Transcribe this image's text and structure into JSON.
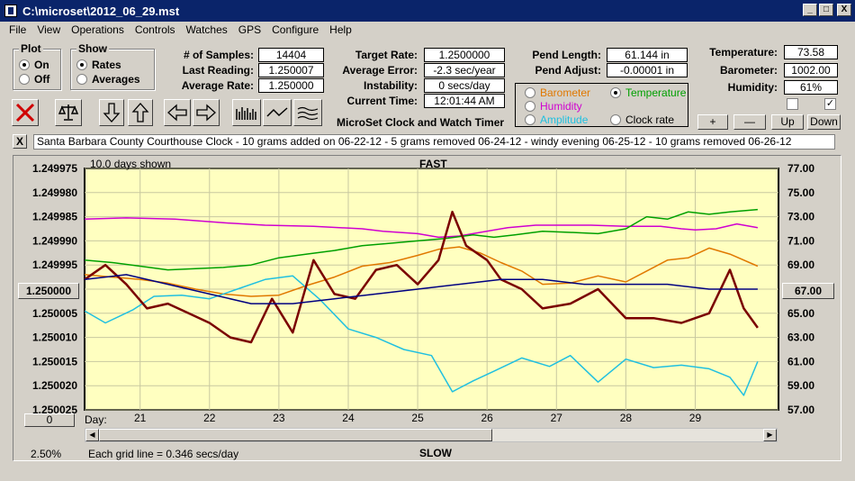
{
  "window": {
    "title": "C:\\microset\\2012_06_29.mst",
    "min": "_",
    "max": "□",
    "close": "X"
  },
  "menu": [
    "File",
    "View",
    "Operations",
    "Controls",
    "Watches",
    "GPS",
    "Configure",
    "Help"
  ],
  "plot_group": {
    "title": "Plot",
    "on": "On",
    "off": "Off",
    "selected": "On"
  },
  "show_group": {
    "title": "Show",
    "rates": "Rates",
    "averages": "Averages",
    "selected": "Rates"
  },
  "stats": {
    "samples_label": "# of Samples:",
    "samples": "14404",
    "last_label": "Last Reading:",
    "last": "1.250007",
    "avg_rate_label": "Average Rate:",
    "avg_rate": "1.250000",
    "target_label": "Target Rate:",
    "target": "1.2500000",
    "avg_err_label": "Average Error:",
    "avg_err": "-2.3 sec/year",
    "instab_label": "Instability:",
    "instab": "0 secs/day",
    "time_label": "Current Time:",
    "time": "12:01:44 AM",
    "pend_len_label": "Pend Length:",
    "pend_len": "61.144 in",
    "pend_adj_label": "Pend Adjust:",
    "pend_adj": "-0.00001 in",
    "temp_label": "Temperature:",
    "temp": "73.58",
    "baro_label": "Barometer:",
    "baro": "1002.00",
    "hum_label": "Humidity:",
    "hum": "61%"
  },
  "app_name": "MicroSet Clock and Watch Timer",
  "sensor_group": {
    "barometer": "Barometer",
    "temperature": "Temperature",
    "humidity": "Humidity",
    "amplitude": "Amplitude",
    "clock_rate": "Clock rate",
    "selected": "Temperature",
    "colors": {
      "barometer": "#e07800",
      "temperature": "#00a000",
      "humidity": "#d000d0",
      "amplitude": "#20c0e0",
      "clock_rate": "#000000"
    }
  },
  "right_buttons": {
    "plus": "+",
    "minus": "—",
    "up": "Up",
    "down": "Down"
  },
  "notes_close": "X",
  "notes": "Santa Barbara County Courthouse Clock - 10 grams added on 06-22-12 - 5 grams removed 06-24-12 - windy evening 06-25-12 - 10 grams removed 06-26-12",
  "plot": {
    "days_shown": "10.0 days shown",
    "top": "FAST",
    "bottom": "SLOW",
    "center_left": "1.250000",
    "center_right": "67.00",
    "left_scroll": "0",
    "zoom": "2.50%",
    "grid_note": "Each grid line = 0.346 secs/day",
    "day_label": "Day:"
  },
  "chart_data": {
    "type": "line",
    "left_axis": {
      "ticks": [
        "1.249975",
        "1.249980",
        "1.249985",
        "1.249990",
        "1.249995",
        "1.250000",
        "1.250005",
        "1.250010",
        "1.250015",
        "1.250020",
        "1.250025"
      ],
      "range": [
        1.250025,
        1.249975
      ],
      "reversed": true
    },
    "right_axis": {
      "ticks": [
        "77.00",
        "75.00",
        "73.00",
        "71.00",
        "69.00",
        "67.00",
        "65.00",
        "63.00",
        "61.00",
        "59.00",
        "57.00"
      ],
      "range": [
        57,
        77
      ]
    },
    "x_ticks": [
      "21",
      "22",
      "23",
      "24",
      "25",
      "26",
      "27",
      "28",
      "29"
    ],
    "xlim": [
      20.2,
      30.2
    ],
    "grid": true,
    "series": [
      {
        "name": "Humidity",
        "color": "#d000d0",
        "width": 1.5,
        "axis": "right",
        "x": [
          20.2,
          20.8,
          21.5,
          22.2,
          22.8,
          23.5,
          24.2,
          24.5,
          25,
          25.3,
          25.6,
          25.9,
          26.3,
          26.7,
          27,
          27.5,
          28,
          28.5,
          28.8,
          29,
          29.3,
          29.6,
          29.9
        ],
        "y": [
          72.8,
          72.9,
          72.8,
          72.5,
          72.3,
          72.2,
          72.0,
          71.8,
          71.6,
          71.3,
          71.4,
          71.7,
          72.1,
          72.3,
          72.3,
          72.3,
          72.2,
          72.2,
          72.0,
          71.9,
          72.0,
          72.4,
          72.1
        ]
      },
      {
        "name": "Temperature",
        "color": "#00a000",
        "width": 1.5,
        "axis": "right",
        "x": [
          20.2,
          20.6,
          21,
          21.4,
          21.8,
          22.2,
          22.6,
          23,
          23.4,
          23.8,
          24.2,
          24.6,
          25,
          25.4,
          25.8,
          26.1,
          26.4,
          26.8,
          27.2,
          27.6,
          28,
          28.3,
          28.6,
          28.9,
          29.2,
          29.5,
          29.9
        ],
        "y": [
          69.4,
          69.2,
          68.9,
          68.6,
          68.7,
          68.8,
          69.0,
          69.6,
          69.9,
          70.2,
          70.6,
          70.8,
          71.0,
          71.2,
          71.5,
          71.3,
          71.5,
          71.8,
          71.7,
          71.6,
          72.0,
          73.0,
          72.8,
          73.4,
          73.2,
          73.4,
          73.6
        ]
      },
      {
        "name": "Barometer",
        "color": "#e07800",
        "width": 1.5,
        "axis": "right",
        "x": [
          20.2,
          20.6,
          21,
          21.4,
          21.8,
          22.2,
          22.6,
          23,
          23.4,
          23.8,
          24.2,
          24.6,
          25,
          25.3,
          25.6,
          25.9,
          26.2,
          26.5,
          26.8,
          27.2,
          27.6,
          28,
          28.3,
          28.6,
          28.9,
          29.2,
          29.5,
          29.9
        ],
        "y": [
          68.2,
          68.0,
          67.8,
          67.5,
          67.0,
          66.6,
          66.4,
          66.5,
          67.3,
          68.0,
          68.9,
          69.2,
          69.8,
          70.3,
          70.5,
          70.0,
          69.2,
          68.5,
          67.4,
          67.5,
          68.1,
          67.6,
          68.5,
          69.4,
          69.6,
          70.4,
          69.9,
          68.9
        ]
      },
      {
        "name": "Amplitude",
        "color": "#20c0e0",
        "width": 1.5,
        "axis": "right",
        "x": [
          20.2,
          20.5,
          20.9,
          21.2,
          21.6,
          22,
          22.4,
          22.8,
          23.2,
          23.6,
          24,
          24.4,
          24.8,
          25.2,
          25.5,
          25.8,
          26.1,
          26.5,
          26.9,
          27.2,
          27.6,
          28,
          28.4,
          28.8,
          29.2,
          29.5,
          29.7,
          29.9
        ],
        "y": [
          65.2,
          64.2,
          65.3,
          66.4,
          66.5,
          66.2,
          67.0,
          67.8,
          68.1,
          66.1,
          63.7,
          63.0,
          62.0,
          61.5,
          58.5,
          59.4,
          60.2,
          61.3,
          60.6,
          61.5,
          59.3,
          61.2,
          60.5,
          60.7,
          60.4,
          59.7,
          58.2,
          61.0
        ]
      },
      {
        "name": "Clock rate",
        "color": "#7a0000",
        "width": 2.5,
        "axis": "left",
        "x": [
          20.2,
          20.5,
          20.8,
          21.1,
          21.4,
          21.7,
          22,
          22.3,
          22.6,
          22.9,
          23.2,
          23.5,
          23.8,
          24.1,
          24.4,
          24.7,
          25,
          25.3,
          25.5,
          25.7,
          26,
          26.2,
          26.5,
          26.8,
          27.2,
          27.6,
          28,
          28.4,
          28.8,
          29.2,
          29.5,
          29.7,
          29.9
        ],
        "y": [
          1.249998,
          1.249995,
          1.249999,
          1.250004,
          1.250003,
          1.250005,
          1.250007,
          1.25001,
          1.250011,
          1.250002,
          1.250009,
          1.249994,
          1.250001,
          1.250002,
          1.249996,
          1.249995,
          1.249999,
          1.249994,
          1.249984,
          1.249991,
          1.249994,
          1.249998,
          1.25,
          1.250004,
          1.250003,
          1.25,
          1.250006,
          1.250006,
          1.250007,
          1.250005,
          1.249996,
          1.250004,
          1.250008
        ]
      },
      {
        "name": "Average rate",
        "color": "#000080",
        "width": 1.5,
        "axis": "left",
        "x": [
          20.2,
          20.8,
          21.4,
          22,
          22.6,
          23.2,
          23.8,
          24.4,
          25,
          25.6,
          26.2,
          26.8,
          27.4,
          28,
          28.6,
          29.2,
          29.9
        ],
        "y": [
          1.249998,
          1.249997,
          1.249999,
          1.250001,
          1.250003,
          1.250003,
          1.250002,
          1.250001,
          1.25,
          1.249999,
          1.249998,
          1.249998,
          1.249999,
          1.249999,
          1.249999,
          1.25,
          1.25
        ]
      }
    ]
  }
}
